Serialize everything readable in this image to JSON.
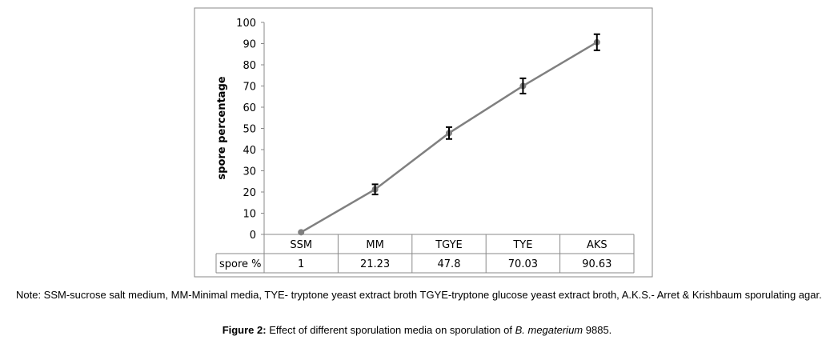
{
  "chart_data": {
    "type": "line",
    "ylabel": "spore percentage",
    "categories": [
      "SSM",
      "MM",
      "TGYE",
      "TYE",
      "AKS"
    ],
    "series": [
      {
        "name": "spore %",
        "values": [
          1,
          21.23,
          47.8,
          70.03,
          90.63
        ],
        "errors": [
          0,
          2.4,
          2.8,
          3.6,
          3.8
        ]
      }
    ],
    "value_labels": [
      "1",
      "21.23",
      "47.8",
      "70.03",
      "90.63"
    ],
    "ylim": [
      0,
      100
    ],
    "yticks": [
      0,
      10,
      20,
      30,
      40,
      50,
      60,
      70,
      80,
      90,
      100
    ],
    "grid": false,
    "data_table": true,
    "line_color": "#808080"
  },
  "note": "Note: SSM-sucrose salt medium, MM-Minimal media, TYE- tryptone yeast extract broth TGYE-tryptone glucose yeast extract broth, A.K.S.- Arret & Krishbaum sporulating agar.",
  "caption": {
    "label": "Figure 2:",
    "text_before": " Effect of different sporulation media on sporulation of ",
    "species": "B. megaterium",
    "text_after": " 9885."
  }
}
